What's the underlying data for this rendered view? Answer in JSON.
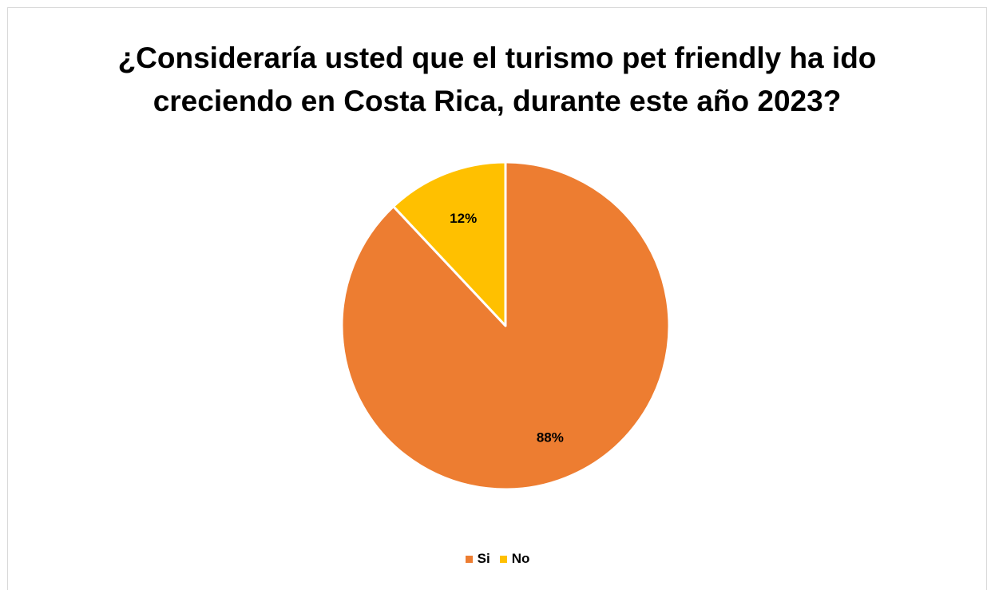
{
  "chart_data": {
    "type": "pie",
    "title_lines": [
      "¿Consideraría usted que el turismo pet friendly ha ido",
      "creciendo en Costa Rica, durante este año 2023?"
    ],
    "categories": [
      "Si",
      "No"
    ],
    "values": [
      88,
      12
    ],
    "data_labels": [
      "88%",
      "12%"
    ],
    "colors": [
      "#ED7D31",
      "#FFC000"
    ],
    "legend_position": "bottom"
  }
}
